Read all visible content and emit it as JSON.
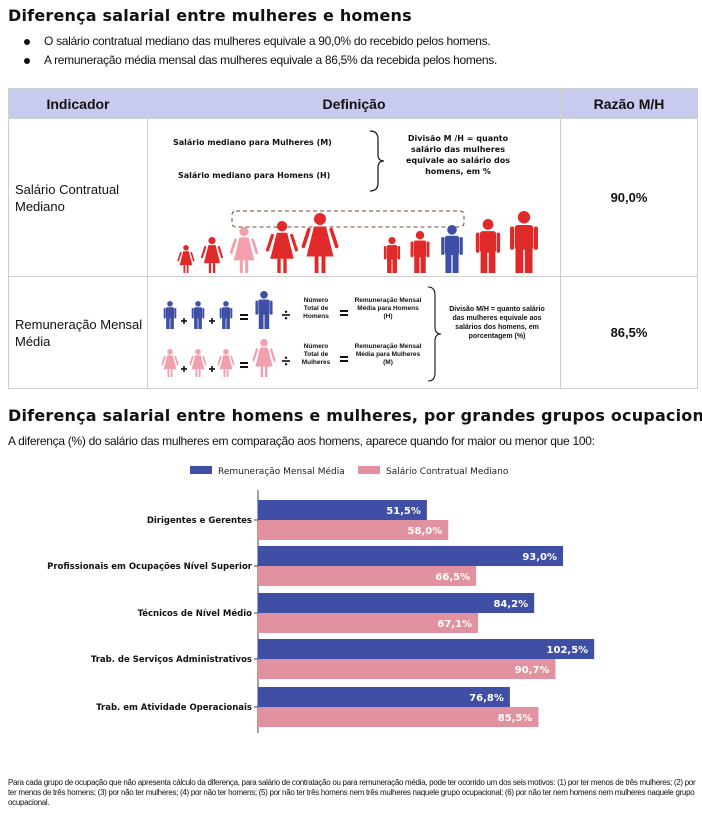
{
  "header": {
    "title": "Diferença salarial entre mulheres e homens",
    "bullets": [
      "O salário contratual mediano das mulheres equivale a 90,0% do recebido pelos homens.",
      "A remuneração média mensal das mulheres equivale a 86,5% da recebida pelos homens."
    ]
  },
  "indicator_table": {
    "headers": [
      "Indicador",
      "Definição",
      "Razão M/H"
    ],
    "rows": [
      {
        "indicator": "Salário Contratual Mediano",
        "ratio": "90,0%",
        "def_line1": "Salário mediano para Mulheres (M)",
        "def_line2": "Salário mediano para Homens (H)",
        "def_division": "Divisão M /H = quanto salário das mulheres equivale ao salário dos homens, em %"
      },
      {
        "indicator": "Remuneração Mensal Média",
        "ratio": "86,5%",
        "men_count": "Número Total de Homens",
        "women_count": "Número Total de Mulheres",
        "men_avg": "Remuneração Mensal Média para Homens (H)",
        "women_avg": "Remuneração Mensal Média para Mulheres (M)",
        "def_division": "Divisão M/H = quanto salário das mulheres equivale aos salários dos homens, em porcentagem (%)"
      }
    ],
    "colors": {
      "header_bg": "#c8cbef",
      "man": "#3f4fa6",
      "woman": "#e8777f",
      "median_woman": "#f2a0ae",
      "median_red": "#e02a2a"
    }
  },
  "section2": {
    "title": "Diferença salarial entre homens e mulheres, por grandes grupos ocupacionais",
    "subtitle": "A diferença (%) do salário das mulheres em comparação aos homens, aparece quando for maior ou menor que 100:"
  },
  "chart_data": {
    "type": "bar",
    "orientation": "horizontal",
    "categories": [
      "Dirigentes e Gerentes",
      "Profissionais em Ocupações Nível Superior",
      "Técnicos de Nível Médio",
      "Trab. de Serviços Administrativos",
      "Trab. em Atividade Operacionais"
    ],
    "series": [
      {
        "name": "Remuneração Mensal Média",
        "color": "#3f4fa6",
        "values": [
          51.5,
          93.0,
          84.2,
          102.5,
          76.8
        ],
        "labels": [
          "51,5%",
          "93,0%",
          "84,2%",
          "102,5%",
          "76,8%"
        ]
      },
      {
        "name": "Salário Contratual Mediano",
        "color": "#e291a1",
        "values": [
          58.0,
          66.5,
          67.1,
          90.7,
          85.5
        ],
        "labels": [
          "58,0%",
          "66,5%",
          "67,1%",
          "90,7%",
          "85,5%"
        ]
      }
    ],
    "legend_position": "top-center",
    "grid": false,
    "xlim": [
      0,
      115
    ]
  },
  "footnote": "Para cada grupo de ocupação que não apresenta cálculo da diferença, para salário de contratação ou para remuneração média, pode ter ocorrido um dos seis motivos: (1) por ter menos de três mulheres; (2) por ter menos de três homens; (3) por não ter mulheres; (4) por não ter homens; (5) por não ter três homens nem três mulheres naquele grupo ocupacional; (6) por não ter nem homens nem mulheres naquele grupo ocupacional."
}
